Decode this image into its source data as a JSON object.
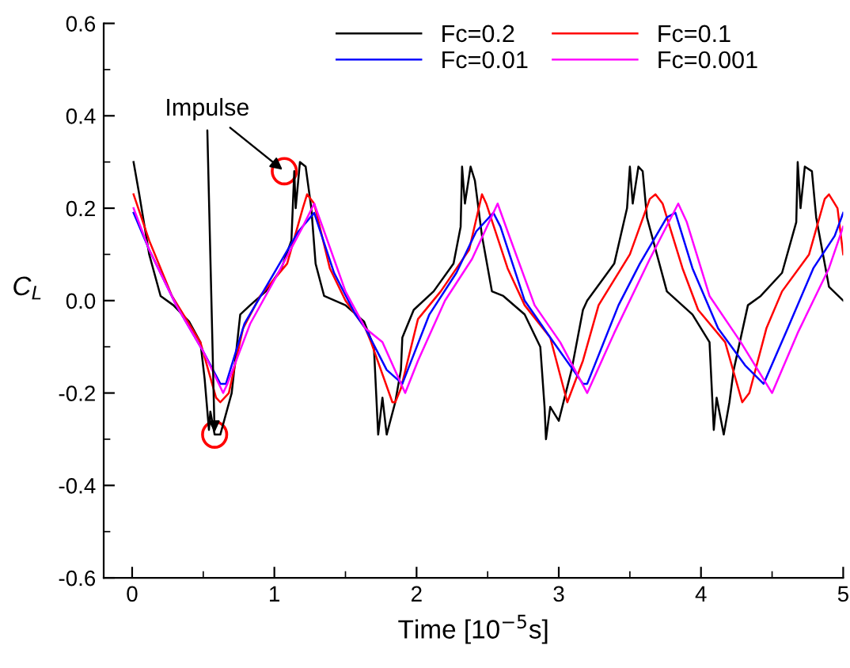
{
  "chart_data": {
    "type": "line",
    "xlabel": "Time [10$^{−5}$s]",
    "ylabel": "C$_{L}$",
    "xlim": [
      -0.2,
      5.0
    ],
    "ylim": [
      -0.6,
      0.6
    ],
    "xticks": [
      0,
      1,
      2,
      3,
      4,
      5
    ],
    "yticks": [
      -0.6,
      -0.4,
      -0.2,
      {
        "value": 0,
        "label": "0.0"
      },
      0.2,
      0.4,
      0.6
    ],
    "legend": "top",
    "grid": false,
    "line_style": "solid",
    "marker": "none",
    "annotations": [
      {
        "text": "Impulse",
        "x": 1.07,
        "y": 0.28
      }
    ],
    "series": [
      {
        "name": "Fc=0.2",
        "color": "#000000",
        "x": [
          0.01,
          0.05,
          0.12,
          0.2,
          0.29,
          0.4,
          0.48,
          0.51,
          0.54,
          0.55,
          0.58,
          0.62,
          0.7,
          0.76,
          0.83,
          0.94,
          1.05,
          1.12,
          1.14,
          1.15,
          1.18,
          1.22,
          1.26,
          1.29,
          1.35,
          1.5,
          1.63,
          1.7,
          1.73,
          1.76,
          1.79,
          1.85,
          1.89,
          1.9,
          1.98,
          2.12,
          2.26,
          2.31,
          2.32,
          2.34,
          2.38,
          2.41,
          2.46,
          2.53,
          2.61,
          2.76,
          2.87,
          2.9,
          2.91,
          2.94,
          3.0,
          3.09,
          3.17,
          3.2,
          3.39,
          3.48,
          3.5,
          3.52,
          3.56,
          3.59,
          3.62,
          3.76,
          3.94,
          4.06,
          4.09,
          4.11,
          4.16,
          4.2,
          4.23,
          4.33,
          4.42,
          4.57,
          4.67,
          4.68,
          4.7,
          4.73,
          4.78,
          4.81,
          4.9,
          5.0
        ],
        "values": [
          0.3,
          0.23,
          0.1,
          0.01,
          -0.01,
          -0.045,
          -0.09,
          -0.17,
          -0.28,
          -0.24,
          -0.29,
          -0.29,
          -0.2,
          -0.03,
          -0.01,
          0.02,
          0.07,
          0.13,
          0.28,
          0.2,
          0.3,
          0.29,
          0.2,
          0.08,
          0.01,
          -0.01,
          -0.045,
          -0.1,
          -0.29,
          -0.21,
          -0.29,
          -0.22,
          -0.15,
          -0.08,
          -0.02,
          0.02,
          0.08,
          0.16,
          0.29,
          0.21,
          0.29,
          0.26,
          0.14,
          0.02,
          0.01,
          -0.03,
          -0.1,
          -0.23,
          -0.3,
          -0.23,
          -0.26,
          -0.15,
          -0.02,
          0.0,
          0.08,
          0.2,
          0.29,
          0.21,
          0.29,
          0.28,
          0.18,
          0.02,
          -0.03,
          -0.09,
          -0.28,
          -0.21,
          -0.29,
          -0.22,
          -0.15,
          -0.01,
          0.01,
          0.06,
          0.17,
          0.3,
          0.2,
          0.29,
          0.28,
          0.18,
          0.03,
          0.0
        ]
      },
      {
        "name": "Fc=0.1",
        "color": "#ff0000",
        "x": [
          0.01,
          0.12,
          0.28,
          0.48,
          0.59,
          0.62,
          0.68,
          0.78,
          0.9,
          1.09,
          1.2,
          1.23,
          1.28,
          1.39,
          1.5,
          1.64,
          1.68,
          1.83,
          1.85,
          1.89,
          2.01,
          2.17,
          2.37,
          2.46,
          2.49,
          2.64,
          2.76,
          2.94,
          3.06,
          3.17,
          3.28,
          3.5,
          3.64,
          3.68,
          3.73,
          3.87,
          3.98,
          4.17,
          4.29,
          4.34,
          4.46,
          4.57,
          4.76,
          4.87,
          4.9,
          4.96,
          5.0
        ],
        "values": [
          0.23,
          0.13,
          0.01,
          -0.09,
          -0.21,
          -0.22,
          -0.2,
          -0.06,
          0.01,
          0.08,
          0.2,
          0.23,
          0.21,
          0.07,
          0.0,
          -0.06,
          -0.09,
          -0.22,
          -0.22,
          -0.19,
          -0.04,
          0.02,
          0.11,
          0.23,
          0.21,
          0.07,
          -0.01,
          -0.08,
          -0.22,
          -0.13,
          -0.01,
          0.1,
          0.22,
          0.23,
          0.21,
          0.07,
          -0.02,
          -0.09,
          -0.22,
          -0.2,
          -0.06,
          0.02,
          0.1,
          0.22,
          0.23,
          0.2,
          0.1
        ]
      },
      {
        "name": "Fc=0.01",
        "color": "#0000ff",
        "x": [
          0.01,
          0.12,
          0.31,
          0.5,
          0.62,
          0.66,
          0.79,
          0.98,
          1.17,
          1.28,
          1.42,
          1.57,
          1.64,
          1.79,
          1.9,
          2.09,
          2.28,
          2.42,
          2.54,
          2.59,
          2.76,
          2.94,
          3.17,
          3.2,
          3.42,
          3.57,
          3.76,
          3.82,
          3.94,
          4.12,
          4.31,
          4.44,
          4.61,
          4.79,
          4.94,
          5.0
        ],
        "values": [
          0.19,
          0.11,
          -0.01,
          -0.11,
          -0.18,
          -0.18,
          -0.05,
          0.05,
          0.15,
          0.19,
          0.06,
          -0.03,
          -0.06,
          -0.15,
          -0.18,
          -0.03,
          0.06,
          0.15,
          0.19,
          0.16,
          0.0,
          -0.08,
          -0.18,
          -0.18,
          -0.01,
          0.08,
          0.18,
          0.19,
          0.07,
          -0.06,
          -0.14,
          -0.18,
          -0.06,
          0.07,
          0.14,
          0.19
        ]
      },
      {
        "name": "Fc=0.001",
        "color": "#ff00ff",
        "x": [
          0.01,
          0.12,
          0.31,
          0.5,
          0.64,
          0.67,
          0.83,
          1.01,
          1.2,
          1.28,
          1.35,
          1.5,
          1.64,
          1.76,
          1.92,
          2.01,
          2.2,
          2.39,
          2.57,
          2.64,
          2.83,
          3.01,
          3.2,
          3.39,
          3.64,
          3.84,
          3.9,
          4.06,
          4.28,
          4.5,
          4.68,
          4.9,
          5.0
        ],
        "values": [
          0.2,
          0.11,
          -0.01,
          -0.11,
          -0.2,
          -0.18,
          -0.05,
          0.05,
          0.16,
          0.21,
          0.15,
          0.02,
          -0.06,
          -0.09,
          -0.2,
          -0.13,
          0.0,
          0.09,
          0.21,
          0.15,
          -0.01,
          -0.09,
          -0.2,
          -0.07,
          0.09,
          0.21,
          0.17,
          0.01,
          -0.09,
          -0.2,
          -0.07,
          0.07,
          0.16
        ]
      }
    ]
  }
}
